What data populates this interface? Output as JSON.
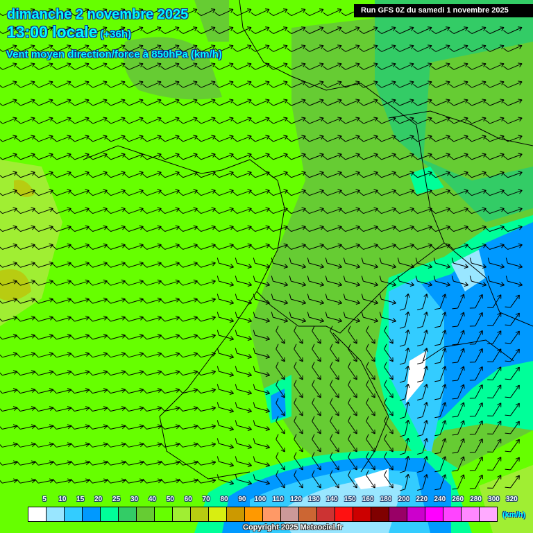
{
  "header": {
    "date": "dimanche 2 novembre 2025",
    "time": "13:00 locale",
    "lead": "(+36h)",
    "parameter": "Vent moyen direction/force à 850hPa (km/h)",
    "run": "Run GFS 0Z du samedi 1 novembre 2025"
  },
  "legend": {
    "labels": [
      "5",
      "10",
      "15",
      "20",
      "25",
      "30",
      "40",
      "50",
      "60",
      "70",
      "80",
      "90",
      "100",
      "110",
      "120",
      "130",
      "140",
      "150",
      "160",
      "180",
      "200",
      "220",
      "240",
      "260",
      "280",
      "300",
      "320"
    ],
    "colors": [
      "#ffffff",
      "#99e6ff",
      "#33ccff",
      "#0099ff",
      "#00ff99",
      "#33cc66",
      "#66cc33",
      "#66ff00",
      "#a0ee33",
      "#b8cc11",
      "#d8ee11",
      "#cc9900",
      "#ff9900",
      "#ff9966",
      "#cc9999",
      "#cc6633",
      "#cc3333",
      "#ff1111",
      "#cc0000",
      "#800000",
      "#990066",
      "#cc00cc",
      "#ff00ff",
      "#ff44ff",
      "#ff88ff",
      "#ffaaff",
      "#ffffff"
    ],
    "unit": "(km/h)"
  },
  "copyright": "Copyright 2025 Meteociel.fr"
}
